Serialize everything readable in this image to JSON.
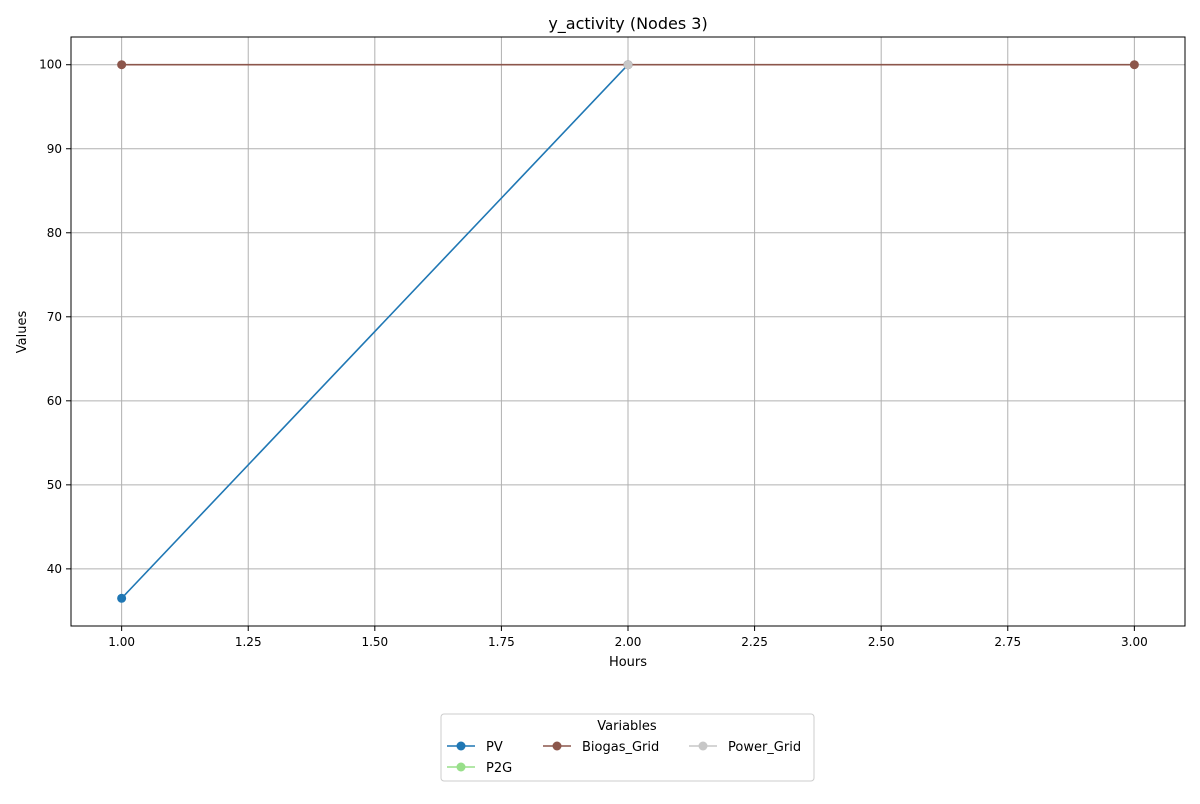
{
  "chart_data": {
    "type": "line",
    "title": "y_activity (Nodes 3)",
    "xlabel": "Hours",
    "ylabel": "Values",
    "x": [
      1,
      2,
      3
    ],
    "xlim": [
      0.9,
      3.1
    ],
    "ylim": [
      33.2,
      103.3
    ],
    "xticks": [
      1.0,
      1.25,
      1.5,
      1.75,
      2.0,
      2.25,
      2.5,
      2.75,
      3.0
    ],
    "xtick_labels": [
      "1.00",
      "1.25",
      "1.50",
      "1.75",
      "2.00",
      "2.25",
      "2.50",
      "2.75",
      "3.00"
    ],
    "yticks": [
      40,
      50,
      60,
      70,
      80,
      90,
      100
    ],
    "ytick_labels": [
      "40",
      "50",
      "60",
      "70",
      "80",
      "90",
      "100"
    ],
    "grid": true,
    "legend": {
      "title": "Variables",
      "placement": "bottom-center"
    },
    "series": [
      {
        "name": "PV",
        "color": "#1f77b4",
        "points": [
          [
            1,
            36.5
          ],
          [
            2,
            100
          ]
        ]
      },
      {
        "name": "P2G",
        "color": "#98df8a",
        "points": []
      },
      {
        "name": "Biogas_Grid",
        "color": "#8c564b",
        "points": [
          [
            1,
            100
          ],
          [
            2,
            100
          ],
          [
            3,
            100
          ]
        ]
      },
      {
        "name": "Power_Grid",
        "color": "#c7c7c7",
        "points": [
          [
            2,
            100
          ]
        ]
      }
    ],
    "legend_order": [
      "PV",
      "P2G",
      "Biogas_Grid",
      "Power_Grid"
    ]
  }
}
